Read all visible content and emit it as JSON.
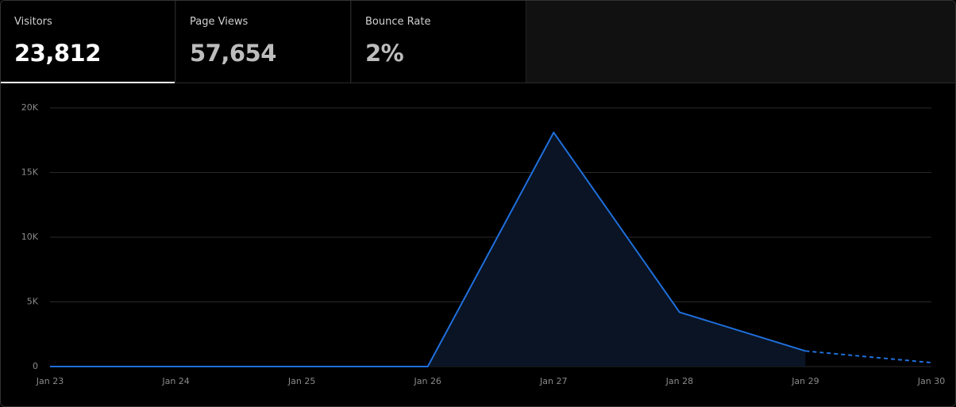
{
  "tabs": [
    {
      "label": "Visitors",
      "value": "23,812"
    },
    {
      "label": "Page Views",
      "value": "57,654"
    },
    {
      "label": "Bounce Rate",
      "value": "2%"
    }
  ],
  "chart_data": {
    "type": "line",
    "categories": [
      "Jan 23",
      "Jan 24",
      "Jan 25",
      "Jan 26",
      "Jan 27",
      "Jan 28",
      "Jan 29",
      "Jan 30"
    ],
    "series": [
      {
        "name": "Visitors",
        "color": "#1f6fdc",
        "values": [
          0,
          0,
          0,
          0,
          18100,
          4200,
          1200,
          300
        ]
      }
    ],
    "ylim": [
      0,
      20000
    ],
    "yticks": [
      0,
      {
        "value": 5000,
        "label": "5K"
      },
      {
        "value": 10000,
        "label": "10K"
      },
      {
        "value": 15000,
        "label": "15K"
      },
      {
        "value": 20000,
        "label": "20K"
      }
    ],
    "grid": true,
    "area": true,
    "dashed_segments": 1
  }
}
